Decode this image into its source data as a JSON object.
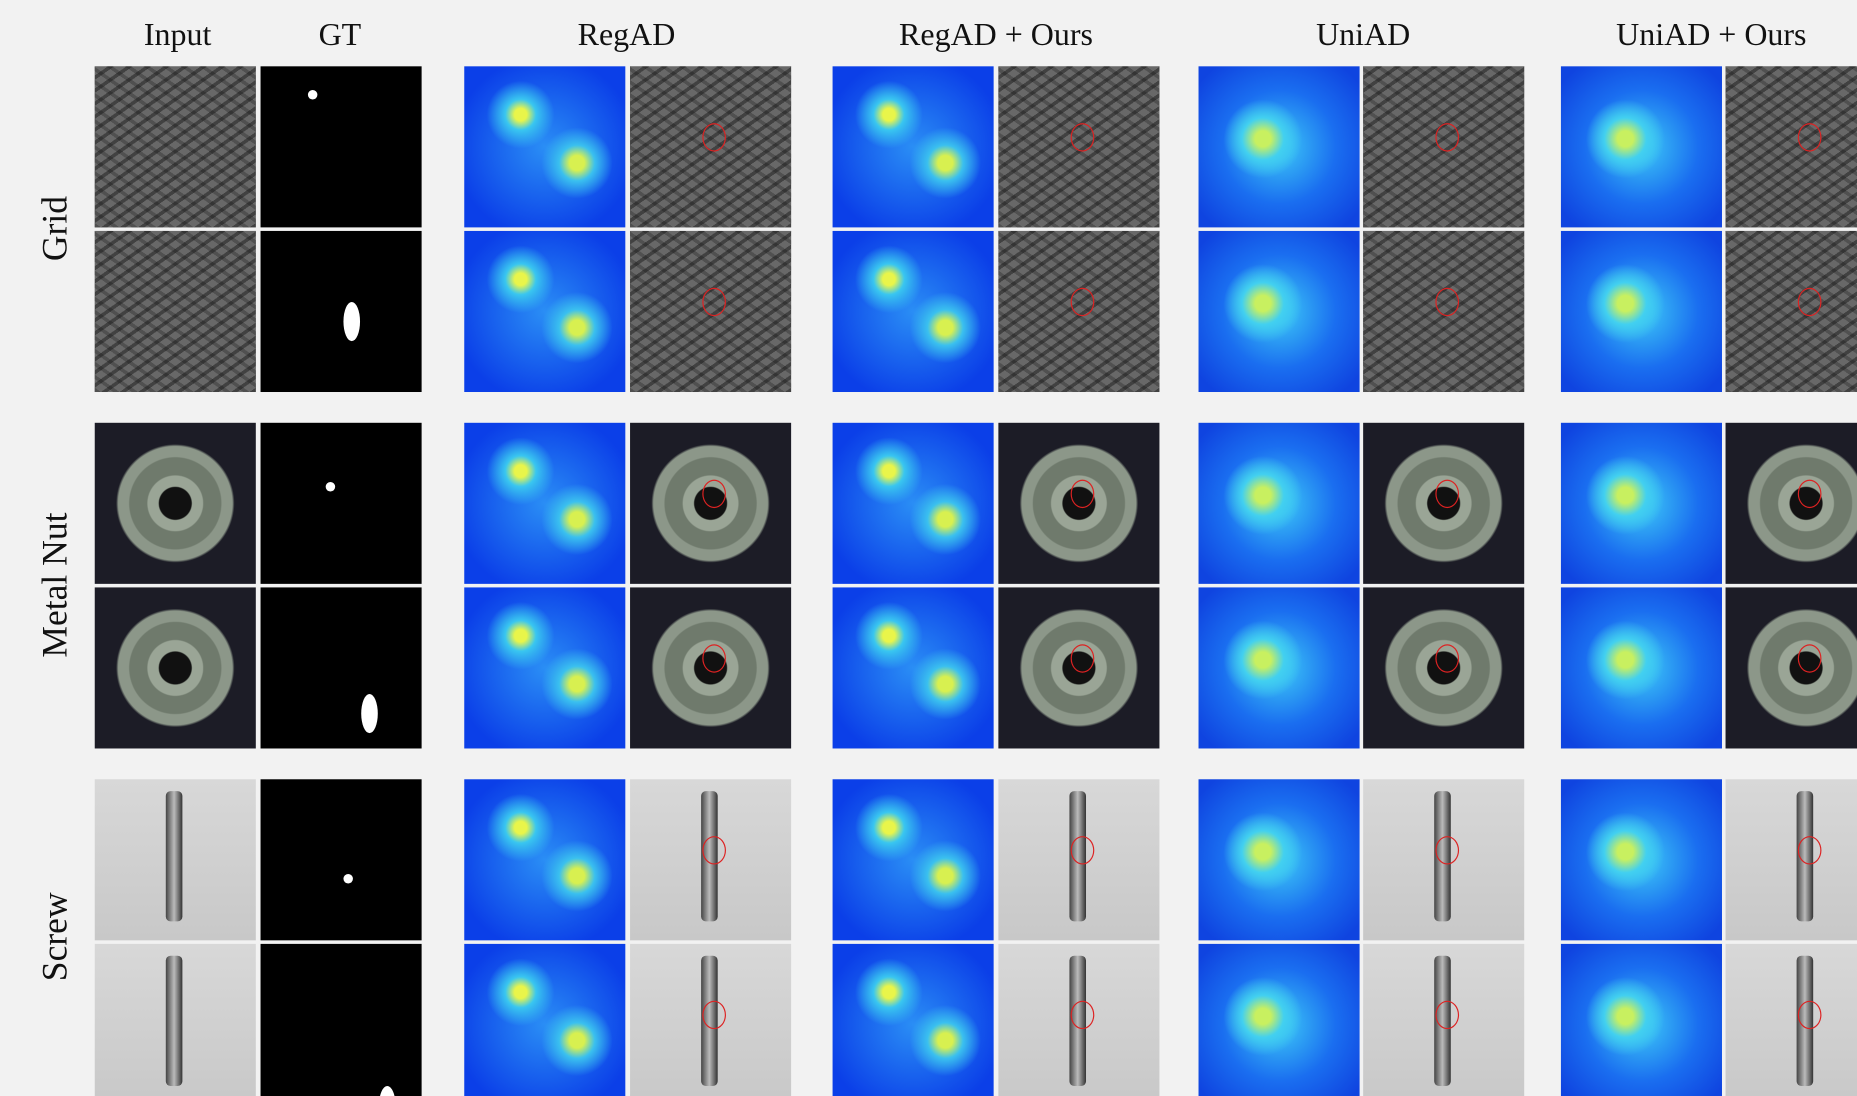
{
  "columns": [
    "Input",
    "GT",
    "RegAD",
    "RegAD + Ours",
    "UniAD",
    "UniAD + Ours"
  ],
  "rows": [
    "Grid",
    "Metal Nut",
    "Screw"
  ]
}
